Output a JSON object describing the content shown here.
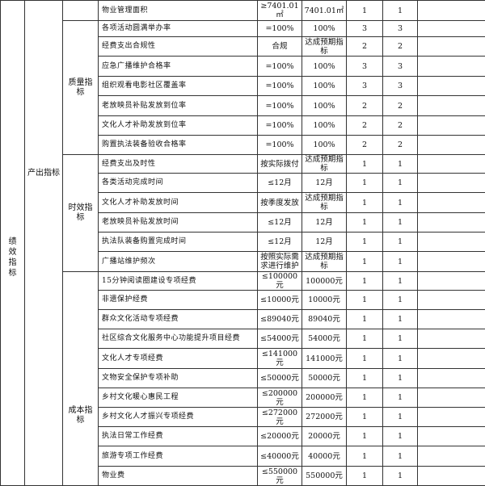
{
  "group_top": "绩效指标",
  "group_second": "产出指标",
  "first_row": {
    "name": "物业管理面积",
    "target": "≥7401.01㎡",
    "actual": "7401.01㎡",
    "weight": "1",
    "score": "1"
  },
  "categories": [
    {
      "label": "质量指标",
      "rows": [
        {
          "name": "各项活动圆满举办率",
          "target": "=100%",
          "actual": "100%",
          "weight": "3",
          "score": "3"
        },
        {
          "name": "经费支出合规性",
          "target": "合规",
          "actual": "达成预期指标",
          "weight": "2",
          "score": "2"
        },
        {
          "name": "应急广播维护合格率",
          "target": "=100%",
          "actual": "100%",
          "weight": "3",
          "score": "3"
        },
        {
          "name": "组织观看电影社区覆盖率",
          "target": "=100%",
          "actual": "100%",
          "weight": "3",
          "score": "3"
        },
        {
          "name": "老放映员补贴发放到位率",
          "target": "=100%",
          "actual": "100%",
          "weight": "2",
          "score": "2"
        },
        {
          "name": "文化人才补助发放到位率",
          "target": "=100%",
          "actual": "100%",
          "weight": "2",
          "score": "2"
        },
        {
          "name": "购置执法装备验收合格率",
          "target": "=100%",
          "actual": "100%",
          "weight": "2",
          "score": "2"
        }
      ]
    },
    {
      "label": "时效指标",
      "rows": [
        {
          "name": "经费支出及时性",
          "target": "按实际拨付",
          "actual": "达成预期指标",
          "weight": "1",
          "score": "1"
        },
        {
          "name": "各类活动完成时间",
          "target": "≤12月",
          "actual": "12月",
          "weight": "1",
          "score": "1"
        },
        {
          "name": "文化人才补助发放时间",
          "target": "按季度发放",
          "actual": "达成预期指标",
          "weight": "1",
          "score": "1"
        },
        {
          "name": "老放映员补贴发放时间",
          "target": "≤12月",
          "actual": "12月",
          "weight": "1",
          "score": "1"
        },
        {
          "name": "执法队装备购置完成时间",
          "target": "≤12月",
          "actual": "12月",
          "weight": "1",
          "score": "1"
        },
        {
          "name": "广播站维护频次",
          "target": "按照实际需求进行维护",
          "actual": "达成预期指标",
          "weight": "1",
          "score": "1"
        }
      ]
    },
    {
      "label": "成本指标",
      "rows": [
        {
          "name": "15分钟阅读圈建设专项经费",
          "target": "≤100000元",
          "actual": "100000元",
          "weight": "1",
          "score": "1"
        },
        {
          "name": "非遗保护经费",
          "target": "≤10000元",
          "actual": "10000元",
          "weight": "1",
          "score": "1"
        },
        {
          "name": "群众文化活动专项经费",
          "target": "≤89040元",
          "actual": "89040元",
          "weight": "1",
          "score": "1"
        },
        {
          "name": "社区综合文化服务中心功能提升项目经费",
          "target": "≤54000元",
          "actual": "54000元",
          "weight": "1",
          "score": "1"
        },
        {
          "name": "文化人才专项经费",
          "target": "≤141000元",
          "actual": "141000元",
          "weight": "1",
          "score": "1"
        },
        {
          "name": "文物安全保护专项补助",
          "target": "≤50000元",
          "actual": "50000元",
          "weight": "1",
          "score": "1"
        },
        {
          "name": "乡村文化暖心惠民工程",
          "target": "≤200000元",
          "actual": "200000元",
          "weight": "1",
          "score": "1"
        },
        {
          "name": "乡村文化人才振兴专项经费",
          "target": "≤272000元",
          "actual": "272000元",
          "weight": "1",
          "score": "1"
        },
        {
          "name": "执法日常工作经费",
          "target": "≤20000元",
          "actual": "20000元",
          "weight": "1",
          "score": "1"
        },
        {
          "name": "旅游专项工作经费",
          "target": "≤40000元",
          "actual": "40000元",
          "weight": "1",
          "score": "1"
        },
        {
          "name": "物业费",
          "target": "≤550000元",
          "actual": "550000元",
          "weight": "1",
          "score": "1"
        }
      ]
    }
  ]
}
